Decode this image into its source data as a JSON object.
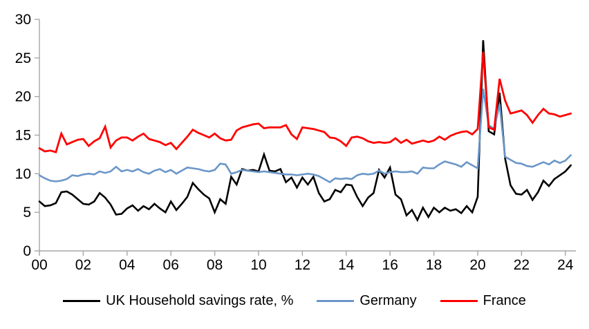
{
  "chart_data": {
    "type": "line",
    "title": "",
    "grid": false,
    "legend_position": "bottom-center",
    "x_axis": {
      "start_year": 2000,
      "step_years": 0.25,
      "tick_labels": [
        "00",
        "02",
        "04",
        "06",
        "08",
        "10",
        "12",
        "14",
        "16",
        "18",
        "20",
        "22",
        "24"
      ],
      "tick_years": [
        2000,
        2002,
        2004,
        2006,
        2008,
        2010,
        2012,
        2014,
        2016,
        2018,
        2020,
        2022,
        2024
      ],
      "range": [
        2000,
        2024.6
      ]
    },
    "y_axis": {
      "ticks": [
        0,
        5,
        10,
        15,
        20,
        25,
        30
      ],
      "tick_labels": [
        "0",
        "5",
        "10",
        "15",
        "20",
        "25",
        "30"
      ],
      "range": [
        0,
        30
      ]
    },
    "series": [
      {
        "name": "UK Household savings rate, %",
        "color": "#000000",
        "stroke_width": 2.6,
        "values": [
          6.4,
          5.8,
          5.9,
          6.2,
          7.6,
          7.7,
          7.3,
          6.7,
          6.1,
          6.0,
          6.4,
          7.5,
          6.9,
          6.0,
          4.7,
          4.8,
          5.5,
          5.9,
          5.2,
          5.8,
          5.4,
          6.1,
          5.5,
          5.0,
          6.4,
          5.3,
          6.1,
          7.0,
          8.8,
          8.0,
          7.3,
          6.8,
          5.0,
          6.7,
          6.1,
          9.6,
          8.6,
          10.6,
          10.4,
          10.5,
          10.3,
          12.5,
          10.4,
          10.3,
          10.6,
          8.9,
          9.5,
          8.2,
          9.5,
          8.6,
          9.6,
          7.5,
          6.4,
          6.7,
          7.9,
          7.6,
          8.6,
          8.5,
          7.0,
          5.8,
          6.9,
          7.5,
          10.5,
          9.5,
          10.8,
          7.3,
          6.7,
          4.6,
          5.3,
          4.0,
          5.6,
          4.4,
          5.6,
          5.0,
          5.6,
          5.2,
          5.4,
          4.9,
          5.8,
          5.0,
          7.0,
          27.3,
          15.5,
          15.1,
          20.5,
          12.0,
          8.5,
          7.4,
          7.3,
          7.9,
          6.6,
          7.6,
          9.1,
          8.4,
          9.3,
          9.8,
          10.3,
          11.1
        ]
      },
      {
        "name": "Germany",
        "color": "#6A96C8",
        "stroke_width": 2.6,
        "values": [
          9.8,
          9.4,
          9.1,
          9.0,
          9.1,
          9.3,
          9.8,
          9.7,
          9.9,
          10.0,
          9.9,
          10.3,
          10.1,
          10.3,
          10.9,
          10.3,
          10.5,
          10.3,
          10.6,
          10.2,
          10.0,
          10.4,
          10.6,
          10.2,
          10.5,
          10.0,
          10.4,
          10.8,
          10.7,
          10.6,
          10.4,
          10.3,
          10.5,
          11.3,
          11.2,
          10.0,
          10.2,
          10.5,
          10.4,
          10.3,
          10.2,
          10.3,
          10.2,
          10.1,
          10.0,
          9.9,
          9.9,
          9.8,
          9.9,
          10.0,
          9.9,
          9.7,
          9.3,
          8.9,
          9.4,
          9.3,
          9.4,
          9.3,
          9.8,
          10.0,
          9.9,
          10.0,
          10.4,
          10.0,
          10.2,
          10.3,
          10.2,
          10.2,
          10.3,
          10.0,
          10.8,
          10.7,
          10.7,
          11.2,
          11.6,
          11.4,
          11.2,
          10.9,
          11.5,
          11.1,
          10.7,
          21.0,
          16.3,
          15.8,
          19.0,
          12.2,
          11.8,
          11.4,
          11.3,
          11.0,
          10.9,
          11.2,
          11.5,
          11.2,
          11.7,
          11.4,
          11.7,
          12.4
        ]
      },
      {
        "name": "France",
        "color": "#FF0000",
        "stroke_width": 2.8,
        "values": [
          13.3,
          12.9,
          13.0,
          12.8,
          15.2,
          13.8,
          14.1,
          14.4,
          14.5,
          13.6,
          14.2,
          14.6,
          16.1,
          13.4,
          14.3,
          14.7,
          14.7,
          14.3,
          14.8,
          15.2,
          14.5,
          14.3,
          14.1,
          13.7,
          14.0,
          13.2,
          14.0,
          14.8,
          15.7,
          15.3,
          15.0,
          14.7,
          15.2,
          14.6,
          14.3,
          14.4,
          15.6,
          16.0,
          16.2,
          16.4,
          16.5,
          15.9,
          16.0,
          16.0,
          16.0,
          16.3,
          15.1,
          14.5,
          16.0,
          15.9,
          15.8,
          15.6,
          15.4,
          14.7,
          14.6,
          14.2,
          13.6,
          14.7,
          14.8,
          14.6,
          14.2,
          14.0,
          14.1,
          14.0,
          14.1,
          14.6,
          14.0,
          14.4,
          13.9,
          14.1,
          14.3,
          14.1,
          14.3,
          14.8,
          14.4,
          14.9,
          15.2,
          15.4,
          15.5,
          15.1,
          15.8,
          25.8,
          16.0,
          15.7,
          22.3,
          19.5,
          17.8,
          18.0,
          18.2,
          17.6,
          16.6,
          17.6,
          18.4,
          17.8,
          17.7,
          17.4,
          17.6,
          17.8
        ]
      }
    ]
  },
  "styles": {
    "axis_color": "#A6A6A6",
    "tick_label_color": "#000000",
    "background": "#FFFFFF"
  }
}
